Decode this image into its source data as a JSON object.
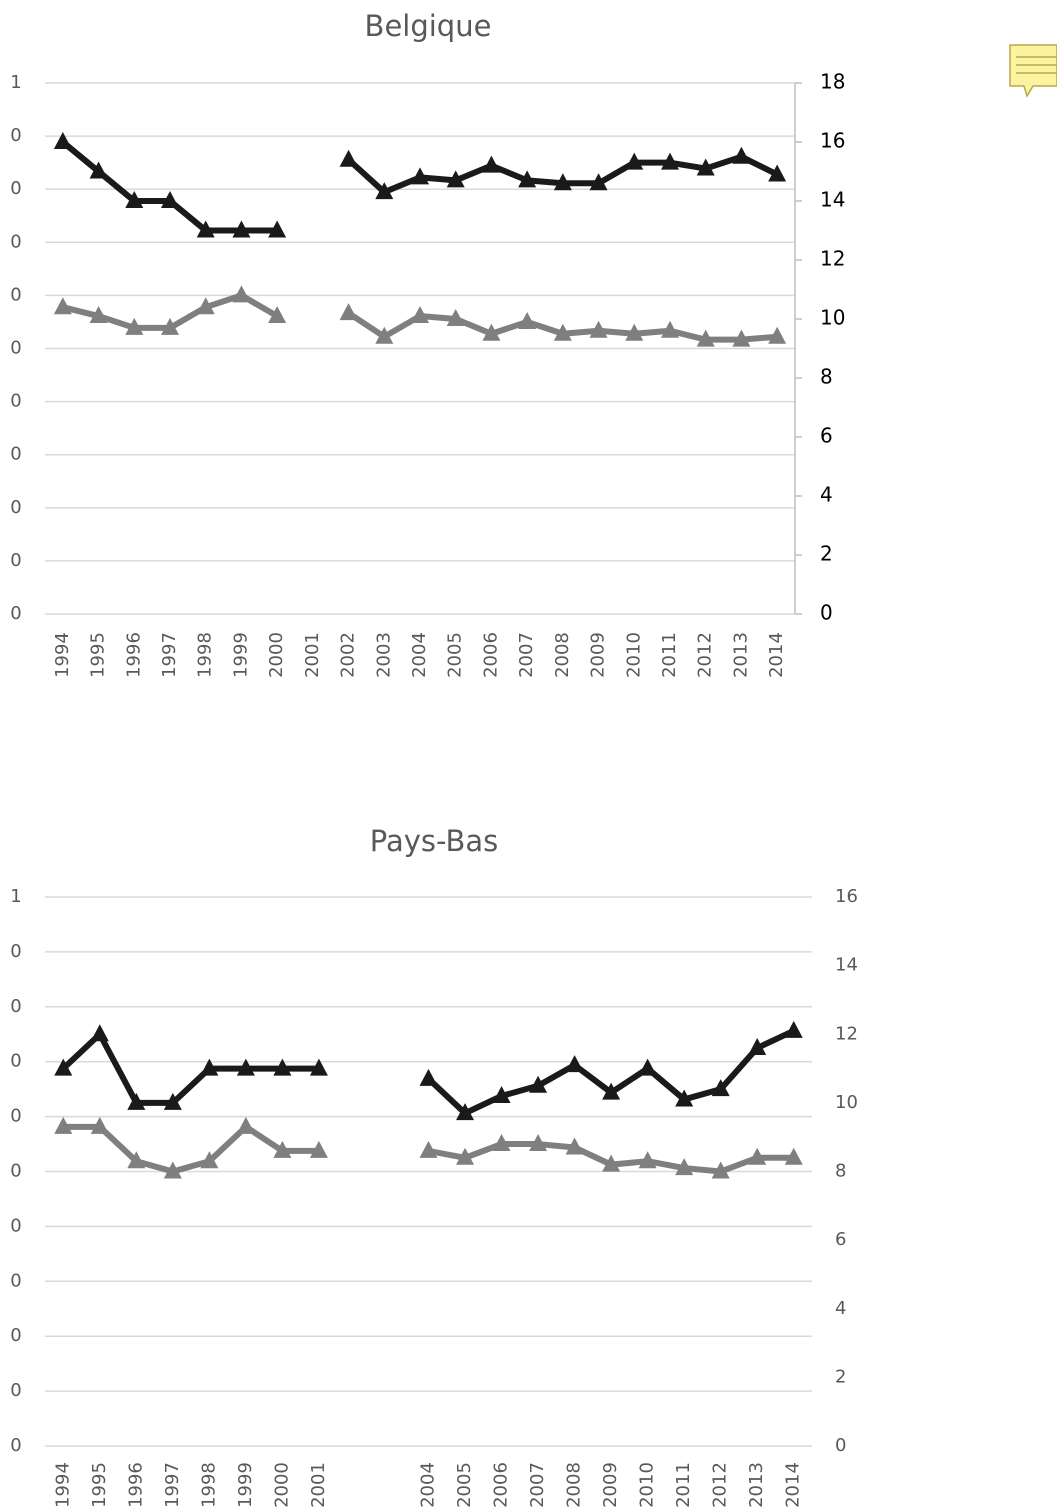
{
  "chart_data": [
    {
      "type": "line",
      "title": "Belgique",
      "categories": [
        "1994",
        "1995",
        "1996",
        "1997",
        "1998",
        "1999",
        "2000",
        "2001",
        "2002",
        "2003",
        "2004",
        "2005",
        "2006",
        "2007",
        "2008",
        "2009",
        "2010",
        "2011",
        "2012",
        "2013",
        "2014"
      ],
      "series": [
        {
          "color": "#1a1a1a",
          "axis": "y2",
          "values": [
            16.0,
            15.0,
            14.0,
            14.0,
            13.0,
            13.0,
            13.0,
            null,
            15.4,
            14.3,
            14.8,
            14.7,
            15.2,
            14.7,
            14.6,
            14.6,
            15.3,
            15.3,
            15.1,
            15.5,
            14.9
          ]
        },
        {
          "color": "#7f7f7f",
          "axis": "y2",
          "values": [
            10.4,
            10.1,
            9.7,
            9.7,
            10.4,
            10.8,
            10.1,
            null,
            10.2,
            9.4,
            10.1,
            10.0,
            9.5,
            9.9,
            9.5,
            9.6,
            9.5,
            9.6,
            9.3,
            9.3,
            9.4
          ]
        }
      ],
      "ylim": [
        0,
        1
      ],
      "yticks": [
        {
          "value": 0,
          "label": "0"
        },
        {
          "value": 0.1,
          "label": "0"
        },
        {
          "value": 0.2,
          "label": "0"
        },
        {
          "value": 0.3,
          "label": "0"
        },
        {
          "value": 0.4,
          "label": "0"
        },
        {
          "value": 0.5,
          "label": "0"
        },
        {
          "value": 0.6,
          "label": "0"
        },
        {
          "value": 0.7,
          "label": "0"
        },
        {
          "value": 0.8,
          "label": "0"
        },
        {
          "value": 0.9,
          "label": "0"
        },
        {
          "value": 1,
          "label": "1"
        }
      ],
      "y2lim": [
        0,
        18
      ],
      "y2ticks": [
        0,
        2,
        4,
        6,
        8,
        10,
        12,
        14,
        16,
        18
      ],
      "grid": true
    },
    {
      "type": "line",
      "title": "Pays-Bas",
      "categories": [
        "1994",
        "1995",
        "1996",
        "1997",
        "1998",
        "1999",
        "2000",
        "2001",
        null,
        null,
        "2004",
        "2005",
        "2006",
        "2007",
        "2008",
        "2009",
        "2010",
        "2011",
        "2012",
        "2013",
        "2014"
      ],
      "series": [
        {
          "color": "#1a1a1a",
          "axis": "y2",
          "values": [
            11.0,
            12.0,
            10.0,
            10.0,
            11.0,
            11.0,
            11.0,
            11.0,
            null,
            null,
            10.7,
            9.7,
            10.2,
            10.5,
            11.1,
            10.3,
            11.0,
            10.1,
            10.4,
            11.6,
            12.1
          ]
        },
        {
          "color": "#7f7f7f",
          "axis": "y2",
          "values": [
            9.3,
            9.3,
            8.3,
            8.0,
            8.3,
            9.3,
            8.6,
            8.6,
            null,
            null,
            8.6,
            8.4,
            8.8,
            8.8,
            8.7,
            8.2,
            8.3,
            8.1,
            8.0,
            8.4,
            8.4
          ]
        }
      ],
      "ylim": [
        0,
        1
      ],
      "yticks": [
        {
          "value": 0,
          "label": "0"
        },
        {
          "value": 0.1,
          "label": "0"
        },
        {
          "value": 0.2,
          "label": "0"
        },
        {
          "value": 0.3,
          "label": "0"
        },
        {
          "value": 0.4,
          "label": "0"
        },
        {
          "value": 0.5,
          "label": "0"
        },
        {
          "value": 0.6,
          "label": "0"
        },
        {
          "value": 0.7,
          "label": "0"
        },
        {
          "value": 0.8,
          "label": "0"
        },
        {
          "value": 0.9,
          "label": "0"
        },
        {
          "value": 1,
          "label": "1"
        }
      ],
      "y2lim": [
        0,
        16
      ],
      "y2ticks": [
        0,
        2,
        4,
        6,
        8,
        10,
        12,
        14,
        16
      ],
      "grid": true
    }
  ]
}
